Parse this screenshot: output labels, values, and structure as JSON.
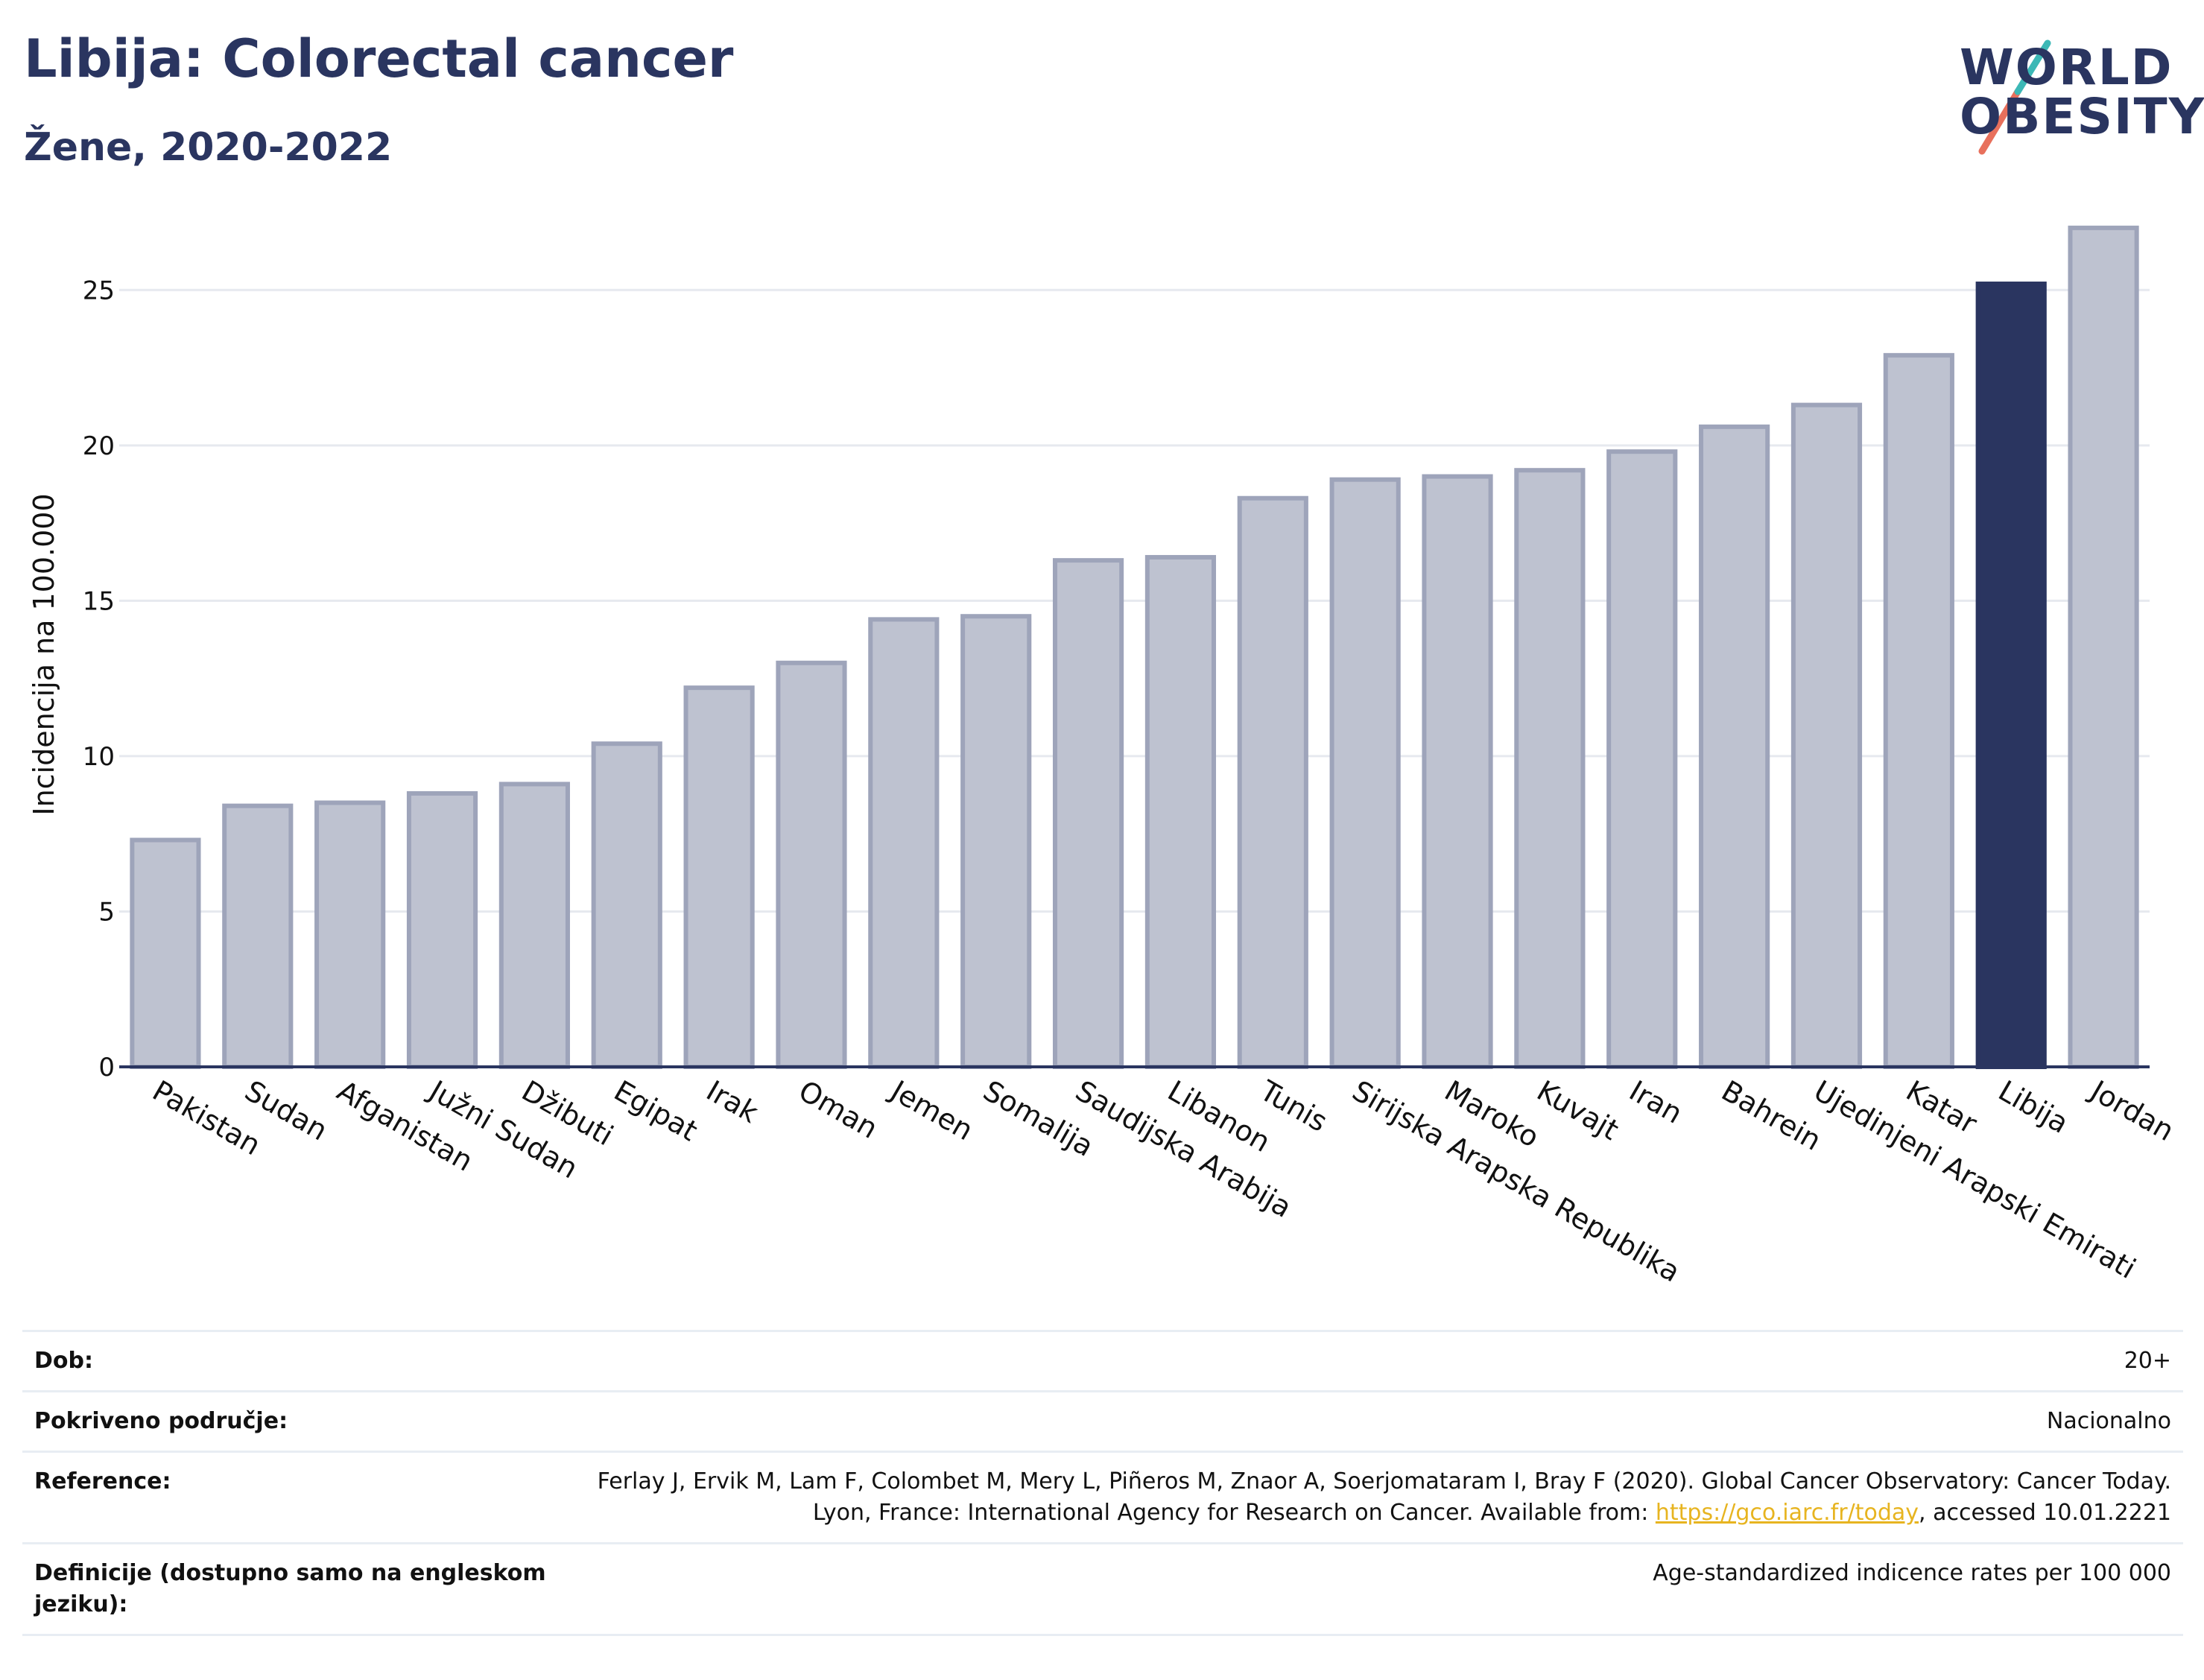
{
  "title": "Libija: Colorectal cancer",
  "subtitle": "Žene, 2020-2022",
  "logo": {
    "line1": "WORLD",
    "line2": "OBESITY"
  },
  "colors": {
    "highlight": "#2a3560",
    "bar": "#bec2d0",
    "bar_border": "#9ea4ba",
    "axis": "#2a3560",
    "grid": "#e6e9ef"
  },
  "chart_data": {
    "type": "bar",
    "ylabel": "Incidencija na 100.000",
    "ylim": [
      0,
      27.5
    ],
    "yticks": [
      0,
      5,
      10,
      15,
      20,
      25
    ],
    "grid": true,
    "highlight": "Libija",
    "categories": [
      "Pakistan",
      "Sudan",
      "Afganistan",
      "Južni Sudan",
      "Džibuti",
      "Egipat",
      "Irak",
      "Oman",
      "Jemen",
      "Somalija",
      "Saudijska Arabija",
      "Libanon",
      "Tunis",
      "Sirijska Arapska Republika",
      "Maroko",
      "Kuvajt",
      "Iran",
      "Bahrein",
      "Ujedinjeni Arapski Emirati",
      "Katar",
      "Libija",
      "Jordan"
    ],
    "values": [
      7.3,
      8.4,
      8.5,
      8.8,
      9.1,
      10.4,
      12.2,
      13.0,
      14.4,
      14.5,
      16.3,
      16.4,
      18.3,
      18.9,
      19.0,
      19.2,
      19.8,
      20.6,
      21.3,
      22.9,
      25.2,
      27.0
    ]
  },
  "meta": {
    "age_label": "Dob:",
    "age_value": "20+",
    "coverage_label": "Pokriveno područje:",
    "coverage_value": "Nacionalno",
    "reference_label": "Reference:",
    "reference_text1": "Ferlay J, Ervik M, Lam F, Colombet M, Mery L, Piñeros M, Znaor A, Soerjomataram I, Bray F (2020). Global Cancer Observatory: Cancer Today. Lyon, France: International Agency for Research on Cancer. Available from: ",
    "reference_link": "https://gco.iarc.fr/today",
    "reference_text2": ", accessed 10.01.2221",
    "definition_label": "Definicije (dostupno samo na engleskom jeziku):",
    "definition_value": "Age-standardized indicence rates per 100 000"
  }
}
